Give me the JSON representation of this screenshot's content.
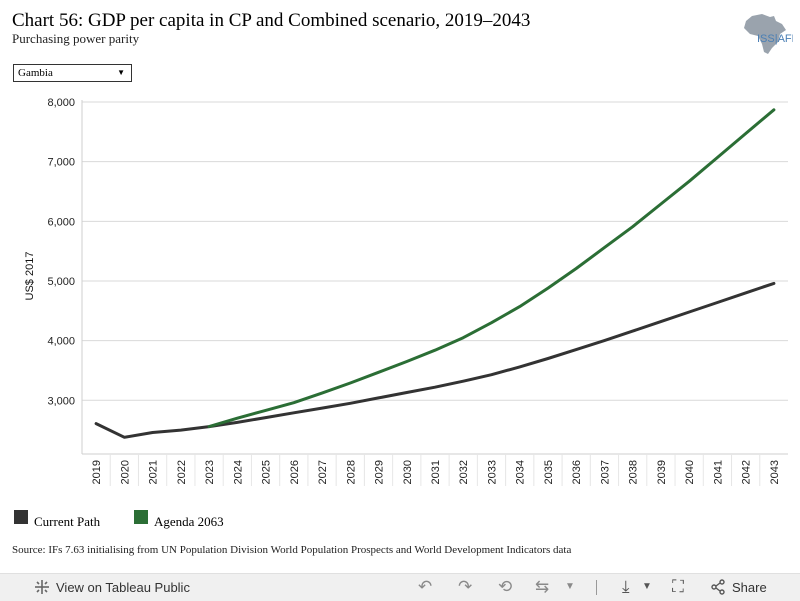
{
  "header": {
    "title": "Chart 56: GDP per capita in CP and Combined scenario, 2019–2043",
    "subtitle": "Purchasing power parity",
    "logo_text": "ISS|AFRICA"
  },
  "filter": {
    "selected": "Gambia"
  },
  "chart_data": {
    "type": "line",
    "title": "Chart 56: GDP per capita in CP and Combined scenario, 2019–2043",
    "subtitle": "Purchasing power parity",
    "xlabel": "",
    "ylabel": "US$ 2017",
    "ylim": [
      2100,
      8000
    ],
    "yticks": [
      3000,
      4000,
      5000,
      6000,
      7000,
      8000
    ],
    "ytick_labels": [
      "3,000",
      "4,000",
      "5,000",
      "6,000",
      "7,000",
      "8,000"
    ],
    "x": [
      "2019",
      "2020",
      "2021",
      "2022",
      "2023",
      "2024",
      "2025",
      "2026",
      "2027",
      "2028",
      "2029",
      "2030",
      "2031",
      "2032",
      "2033",
      "2034",
      "2035",
      "2036",
      "2037",
      "2038",
      "2039",
      "2040",
      "2041",
      "2042",
      "2043"
    ],
    "series": [
      {
        "name": "Current Path",
        "color": "#333333",
        "values": [
          2610,
          2380,
          2460,
          2500,
          2560,
          2630,
          2710,
          2790,
          2870,
          2950,
          3040,
          3130,
          3220,
          3320,
          3430,
          3560,
          3700,
          3850,
          4000,
          4160,
          4320,
          4480,
          4640,
          4800,
          4960
        ]
      },
      {
        "name": "Agenda 2063",
        "color": "#2b6e35",
        "values": [
          null,
          null,
          null,
          null,
          2560,
          2700,
          2830,
          2960,
          3120,
          3290,
          3470,
          3650,
          3840,
          4050,
          4300,
          4570,
          4880,
          5210,
          5560,
          5910,
          6290,
          6670,
          7070,
          7470,
          7870
        ]
      }
    ],
    "legend_position": "bottom-left"
  },
  "legend": {
    "items": [
      {
        "label": "Current Path",
        "color": "#333333"
      },
      {
        "label": "Agenda 2063",
        "color": "#2b6e35"
      }
    ]
  },
  "source": "Source: IFs 7.63 initialising from UN Population Division World Population Prospects and World Development Indicators data",
  "footer": {
    "view_label": "View on Tableau Public",
    "share_label": "Share"
  }
}
